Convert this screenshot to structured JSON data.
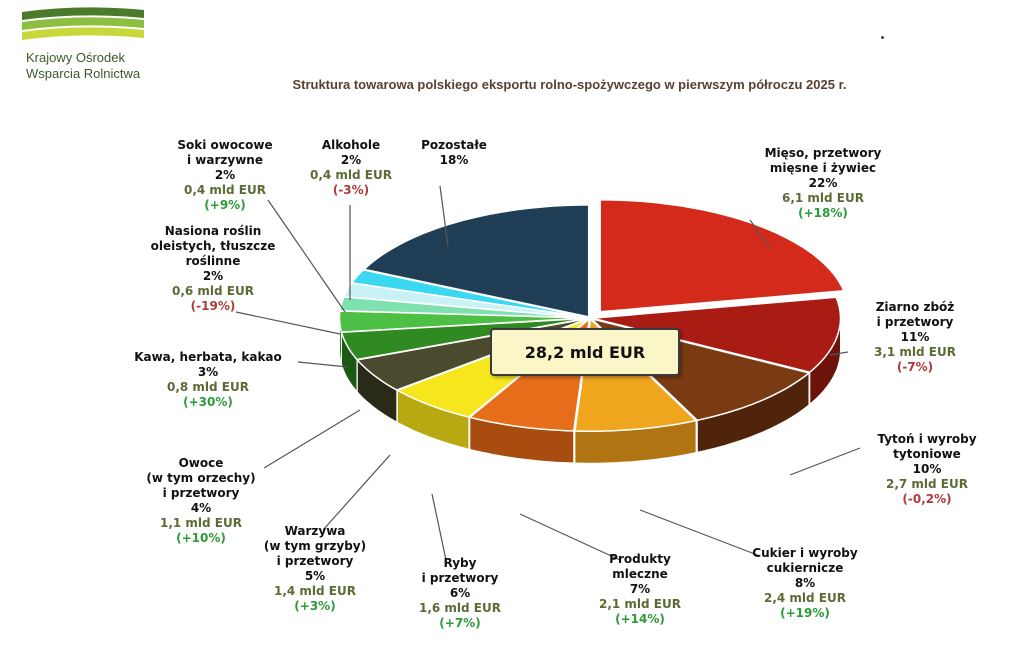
{
  "logo": {
    "line1": "Krajowy Ośrodek",
    "line2": "Wsparcia Rolnictwa",
    "colors": [
      "#4b7a2a",
      "#8cbf3f",
      "#c7d93a"
    ]
  },
  "title": "Struktura towarowa polskiego eksportu rolno-spożywczego w pierwszym półroczu 2025 r.",
  "total_label": "28,2 mld EUR",
  "chart_data": {
    "type": "pie",
    "title": "Struktura towarowa polskiego eksportu rolno-spożywczego w pierwszym półroczu 2025 r.",
    "total": "28,2 mld EUR",
    "slices": [
      {
        "name": "Mięso, przetwory\nmięsne i żywiec",
        "percent": 22,
        "value": "6,1 mld EUR",
        "change": "(+18%)",
        "change_sign": "pos",
        "color": "#d42a1c",
        "side": "#9c1a10"
      },
      {
        "name": "Ziarno zbóż\ni przetwory",
        "percent": 11,
        "value": "3,1 mld EUR",
        "change": "(-7%)",
        "change_sign": "neg",
        "color": "#a81c14",
        "side": "#6e120c"
      },
      {
        "name": "Tytoń i wyroby\ntytoniowe",
        "percent": 10,
        "value": "2,7 mld EUR",
        "change": "(-0,2%)",
        "change_sign": "neg",
        "color": "#7a3a12",
        "side": "#4f240a"
      },
      {
        "name": "Cukier i wyroby\ncukiernicze",
        "percent": 8,
        "value": "2,4 mld EUR",
        "change": "(+19%)",
        "change_sign": "pos",
        "color": "#f0a51e",
        "side": "#b07412"
      },
      {
        "name": "Produkty\nmleczne",
        "percent": 7,
        "value": "2,1 mld EUR",
        "change": "(+14%)",
        "change_sign": "pos",
        "color": "#e66e1a",
        "side": "#a84c10"
      },
      {
        "name": "Ryby\ni przetwory",
        "percent": 6,
        "value": "1,6 mld EUR",
        "change": "(+7%)",
        "change_sign": "pos",
        "color": "#f6e61e",
        "side": "#b8a812"
      },
      {
        "name": "Warzywa\n(w tym grzyby)\ni przetwory",
        "percent": 5,
        "value": "1,4 mld EUR",
        "change": "(+3%)",
        "change_sign": "pos",
        "color": "#4a4a2e",
        "side": "#2a2a18"
      },
      {
        "name": "Owoce\n(w tym orzechy)\ni przetwory",
        "percent": 4,
        "value": "1,1 mld EUR",
        "change": "(+10%)",
        "change_sign": "pos",
        "color": "#2f8a22",
        "side": "#1c5a14"
      },
      {
        "name": "Kawa, herbata, kakao",
        "percent": 3,
        "value": "0,8 mld EUR",
        "change": "(+30%)",
        "change_sign": "pos",
        "color": "#4cbf44",
        "side": "#2e8a2a"
      },
      {
        "name": "Nasiona roślin\noleistych, tłuszcze\nroślinne",
        "percent": 2,
        "value": "0,6 mld EUR",
        "change": "(-19%)",
        "change_sign": "neg",
        "color": "#7fe0b0",
        "side": "#4fa880"
      },
      {
        "name": "Soki owocowe\ni warzywne",
        "percent": 2,
        "value": "0,4 mld EUR",
        "change": "(+9%)",
        "change_sign": "pos",
        "color": "#c8f2f6",
        "side": "#8ec0c6"
      },
      {
        "name": "Alkohole",
        "percent": 2,
        "value": "0,4 mld EUR",
        "change": "(-3%)",
        "change_sign": "neg",
        "color": "#3ad8f0",
        "side": "#1e9ab0"
      },
      {
        "name": "Pozostałe",
        "percent": 18,
        "value": "",
        "change": "",
        "change_sign": "",
        "color": "#1f3e56",
        "side": "#12273a"
      }
    ]
  }
}
